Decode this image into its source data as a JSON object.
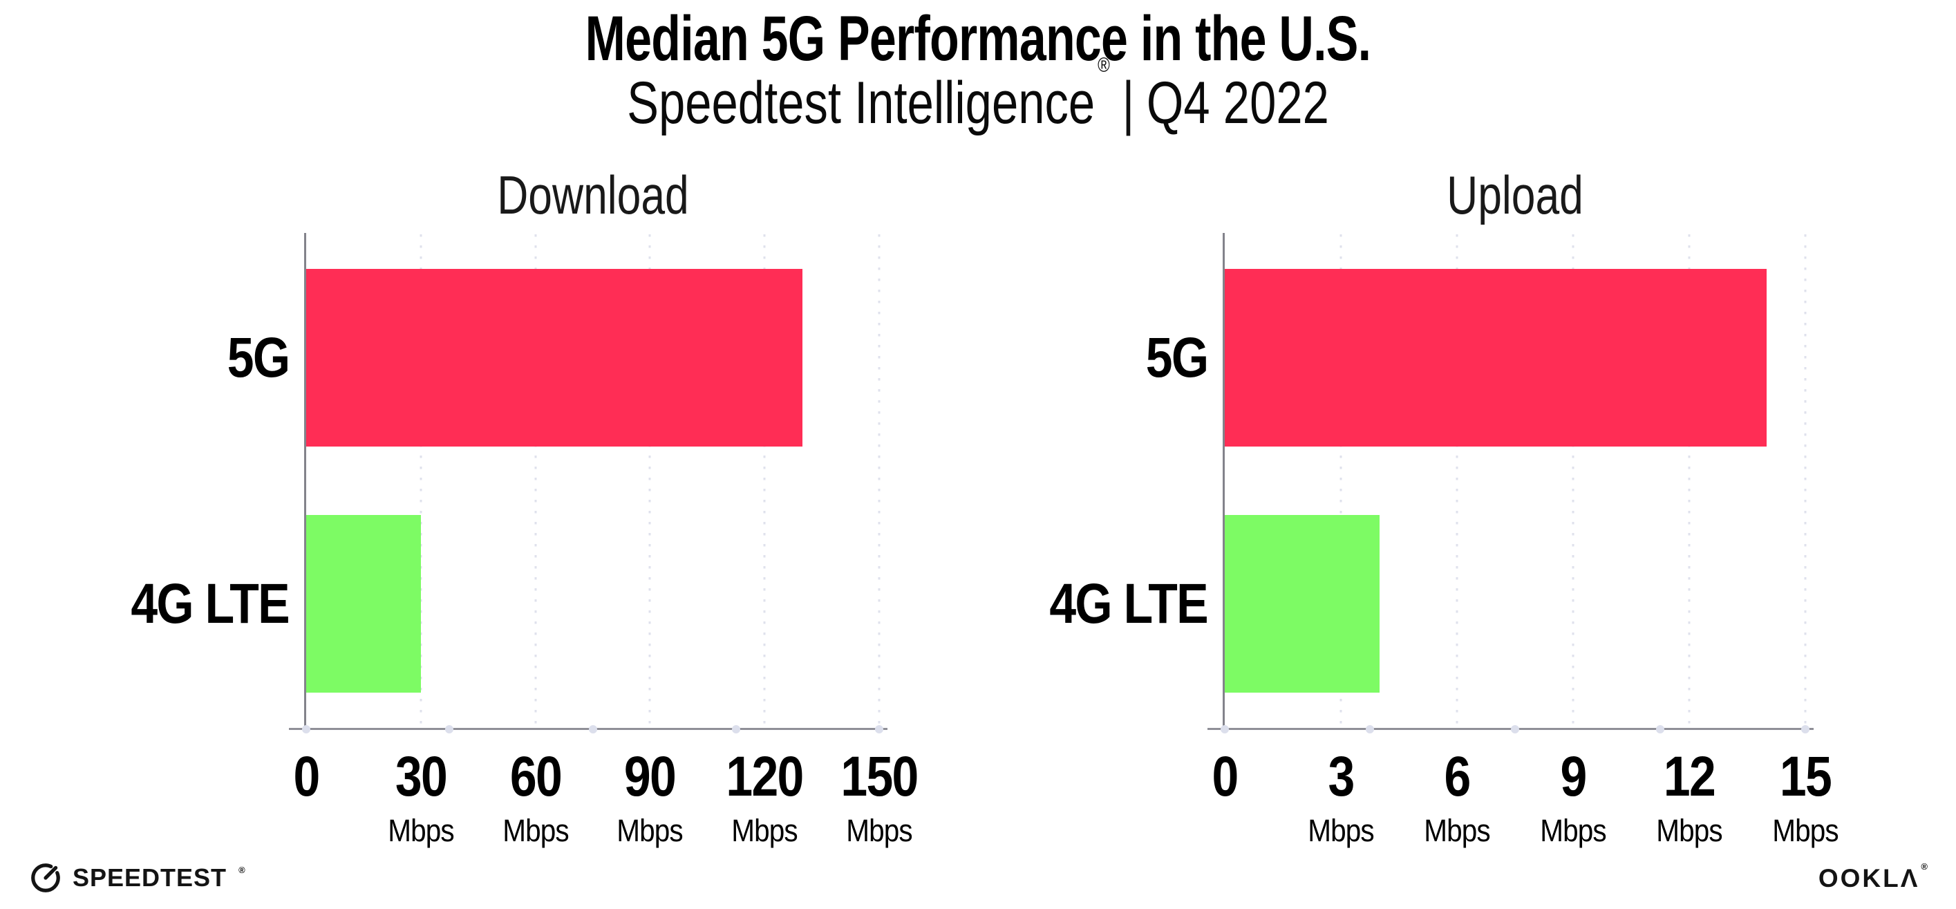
{
  "header": {
    "title": "Median 5G Performance in the U.S.",
    "subtitle": {
      "brand": "Speedtest Intelligence",
      "registered": "®",
      "separator": "|",
      "period": "Q4 2022"
    }
  },
  "chart_data": [
    {
      "type": "bar",
      "orientation": "horizontal",
      "title": "Download",
      "unit": "Mbps",
      "categories": [
        "5G",
        "4G LTE"
      ],
      "values": [
        130,
        30
      ],
      "xlim": [
        0,
        150
      ],
      "xticks": [
        0,
        30,
        60,
        90,
        120,
        150
      ],
      "bar_colors": [
        "#FF2D55",
        "#7DFB64"
      ],
      "grid": "dotted-vertical",
      "legend": "none"
    },
    {
      "type": "bar",
      "orientation": "horizontal",
      "title": "Upload",
      "unit": "Mbps",
      "categories": [
        "5G",
        "4G LTE"
      ],
      "values": [
        14,
        4
      ],
      "xlim": [
        0,
        15
      ],
      "xticks": [
        0,
        3,
        6,
        9,
        12,
        15
      ],
      "bar_colors": [
        "#FF2D55",
        "#7DFB64"
      ],
      "grid": "dotted-vertical",
      "legend": "none"
    }
  ],
  "footer": {
    "speedtest": {
      "label": "SPEEDTEST",
      "registered": "®"
    },
    "ookla": {
      "label": "OOKLΛ",
      "registered": "®"
    }
  },
  "colors": {
    "bar_5g": "#FF2D55",
    "bar_4g_lte": "#7DFB64",
    "axis": "#8f8f97",
    "gridline": "#dfe1ec",
    "text": "#000000"
  }
}
